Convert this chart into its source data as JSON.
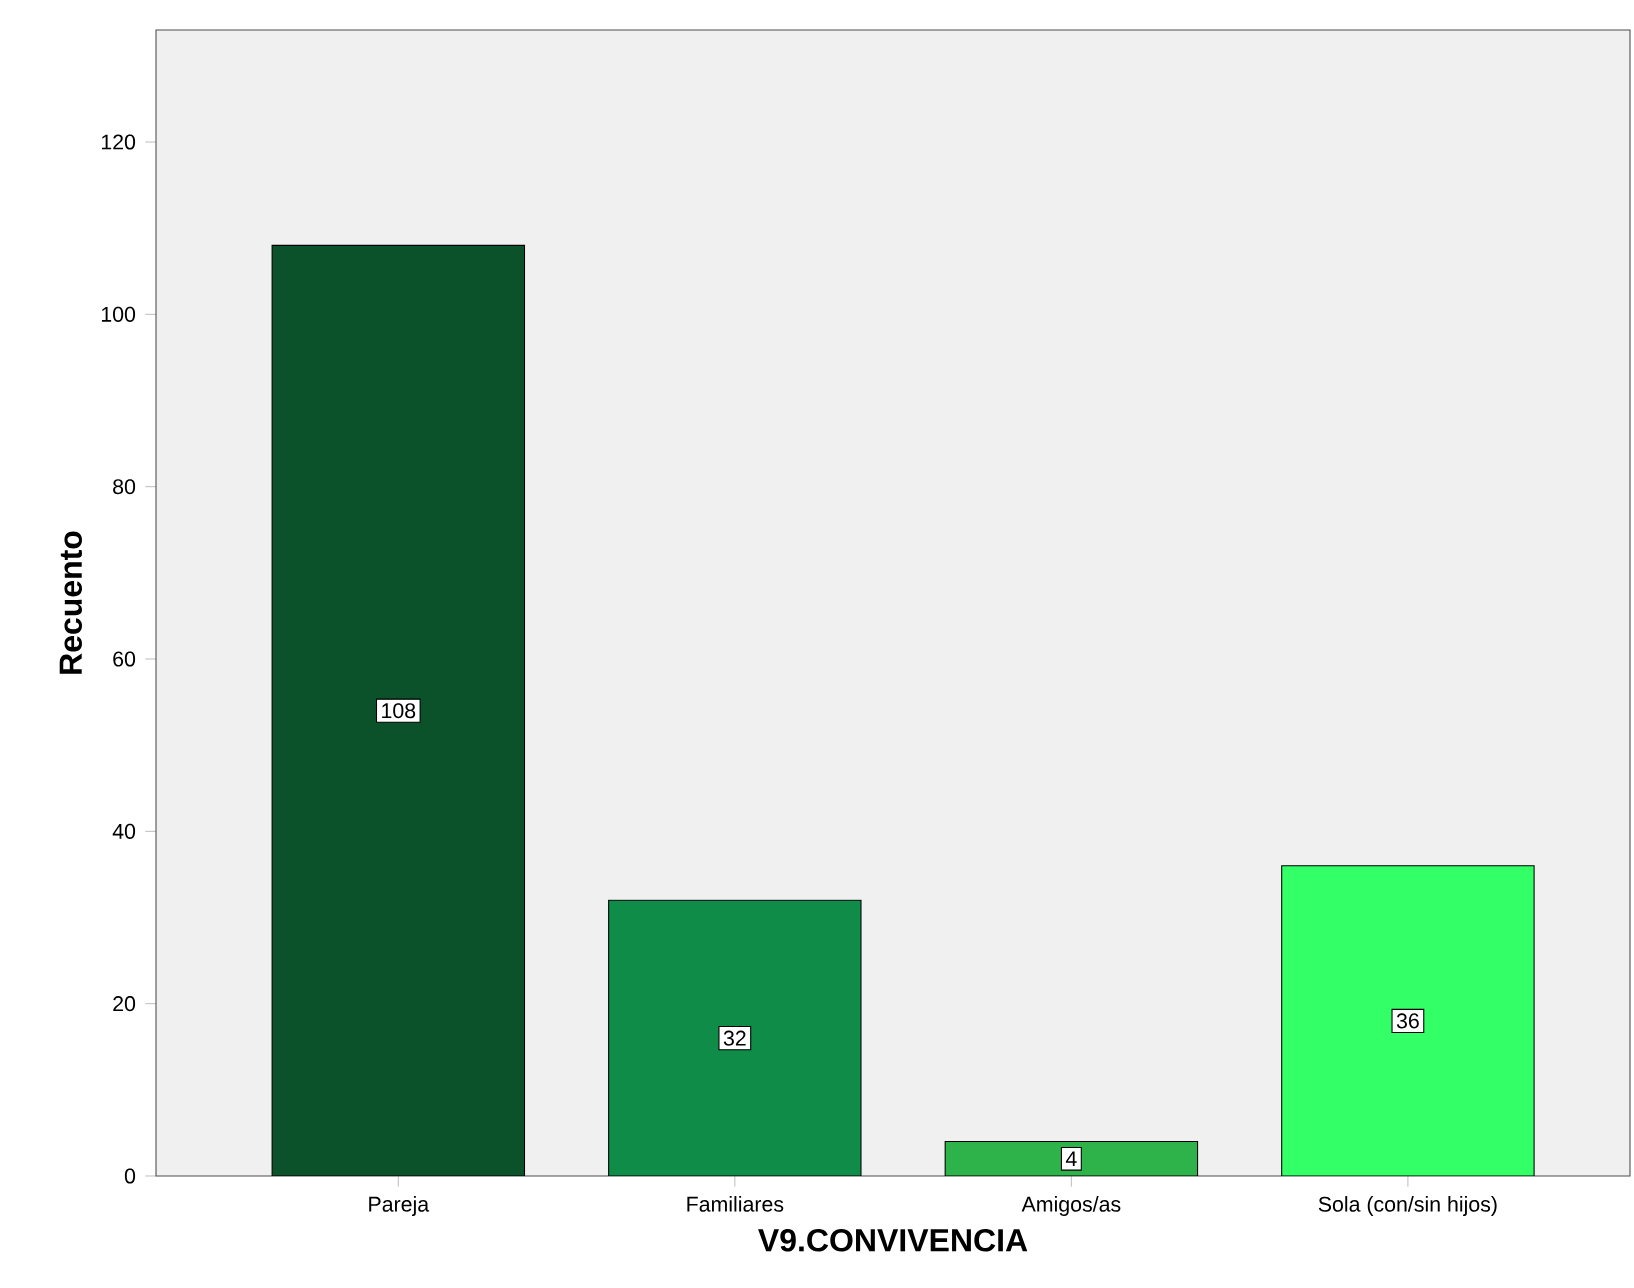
{
  "chart_data": {
    "type": "bar",
    "xlabel": "V9.CONVIVENCIA",
    "ylabel": "Recuento",
    "categories": [
      "Pareja",
      "Familiares",
      "Amigos/as",
      "Sola (con/sin hijos)"
    ],
    "values": [
      108,
      32,
      4,
      36
    ],
    "colors": [
      "#0b5129",
      "#0f8c48",
      "#2db34a",
      "#33ff66"
    ],
    "ylim": [
      0,
      133
    ],
    "yticks": [
      0,
      20,
      40,
      60,
      80,
      100,
      120
    ],
    "grid": false,
    "data_labels": true
  }
}
